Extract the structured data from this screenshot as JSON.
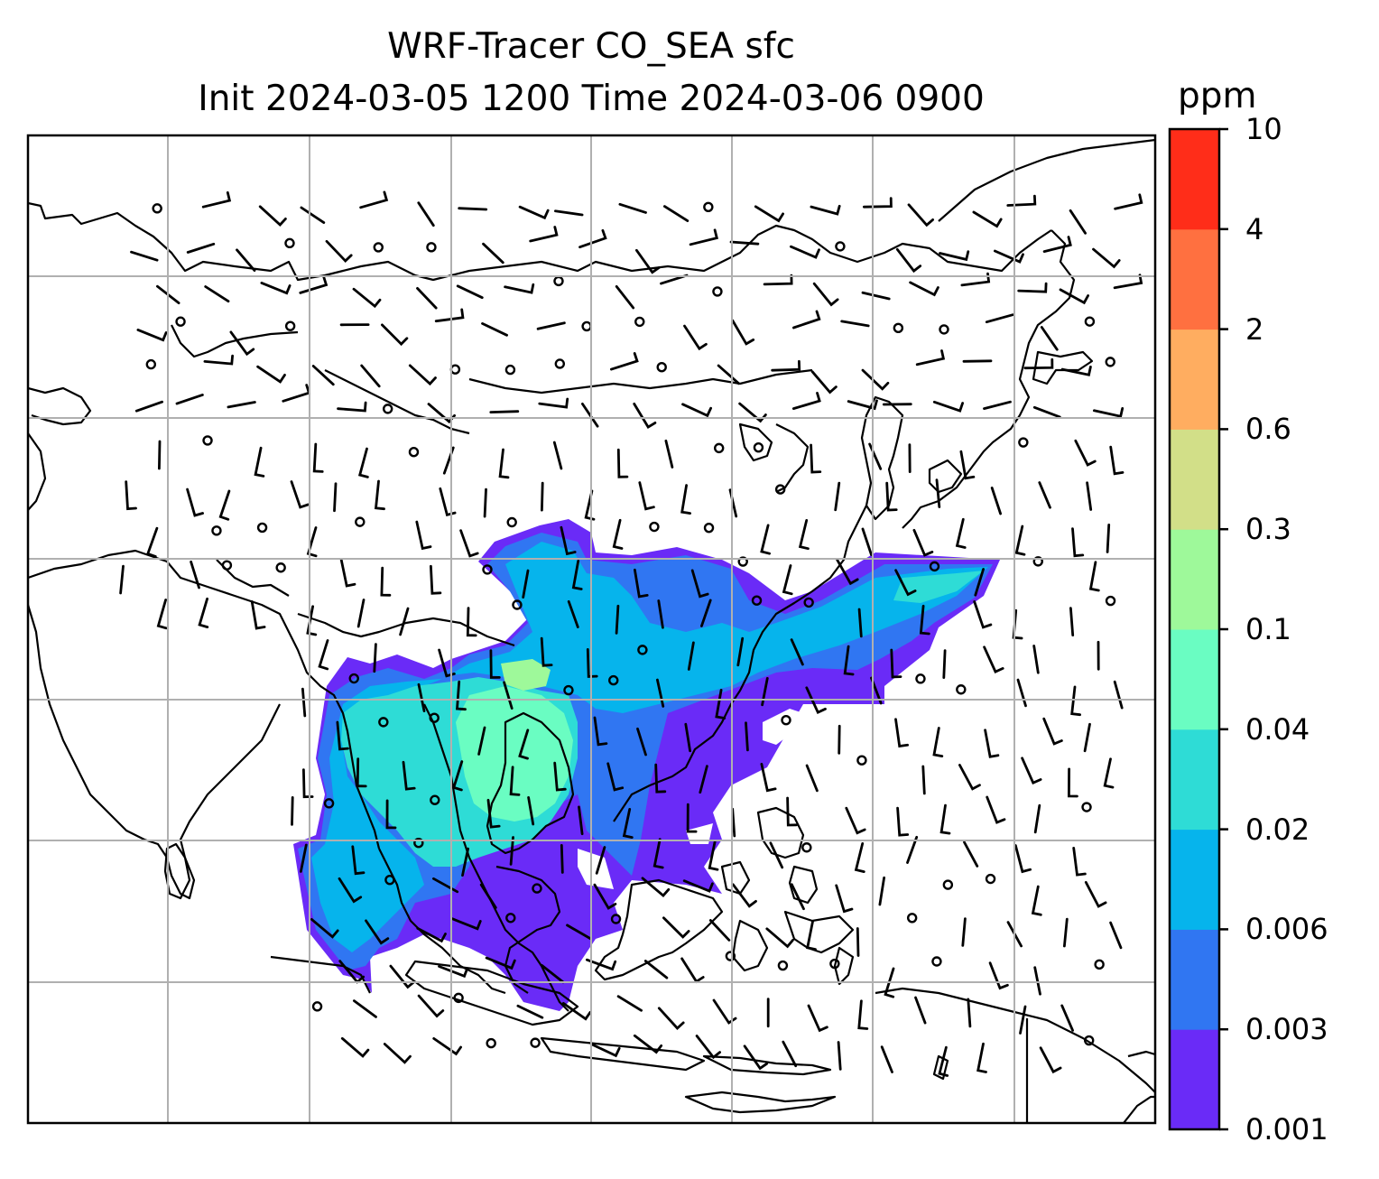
{
  "title": {
    "line1": "WRF-Tracer CO_SEA sfc",
    "line2": "Init 2024-03-05 1200 Time 2024-03-06 0900"
  },
  "colorbar": {
    "unit": "ppm",
    "levels": [
      "0.001",
      "0.003",
      "0.006",
      "0.02",
      "0.04",
      "0.1",
      "0.3",
      "0.6",
      "2",
      "4",
      "10"
    ],
    "colors": [
      "#6a2bf7",
      "#3076f2",
      "#06b4ec",
      "#2edcd6",
      "#6afdc2",
      "#9ef99a",
      "#d2df88",
      "#ffad60",
      "#ff7040",
      "#ff2d19"
    ]
  },
  "map": {
    "type": "filled contour map with wind barbs",
    "variable": "CO_SEA surface tracer concentration",
    "region": "Asia / Southeast Asia",
    "gridlines": true,
    "coastlines": true,
    "overlay": "wind barbs and calm-wind circles"
  },
  "colors": {
    "gridline": "#b0b0b0",
    "coastline": "#000000"
  }
}
